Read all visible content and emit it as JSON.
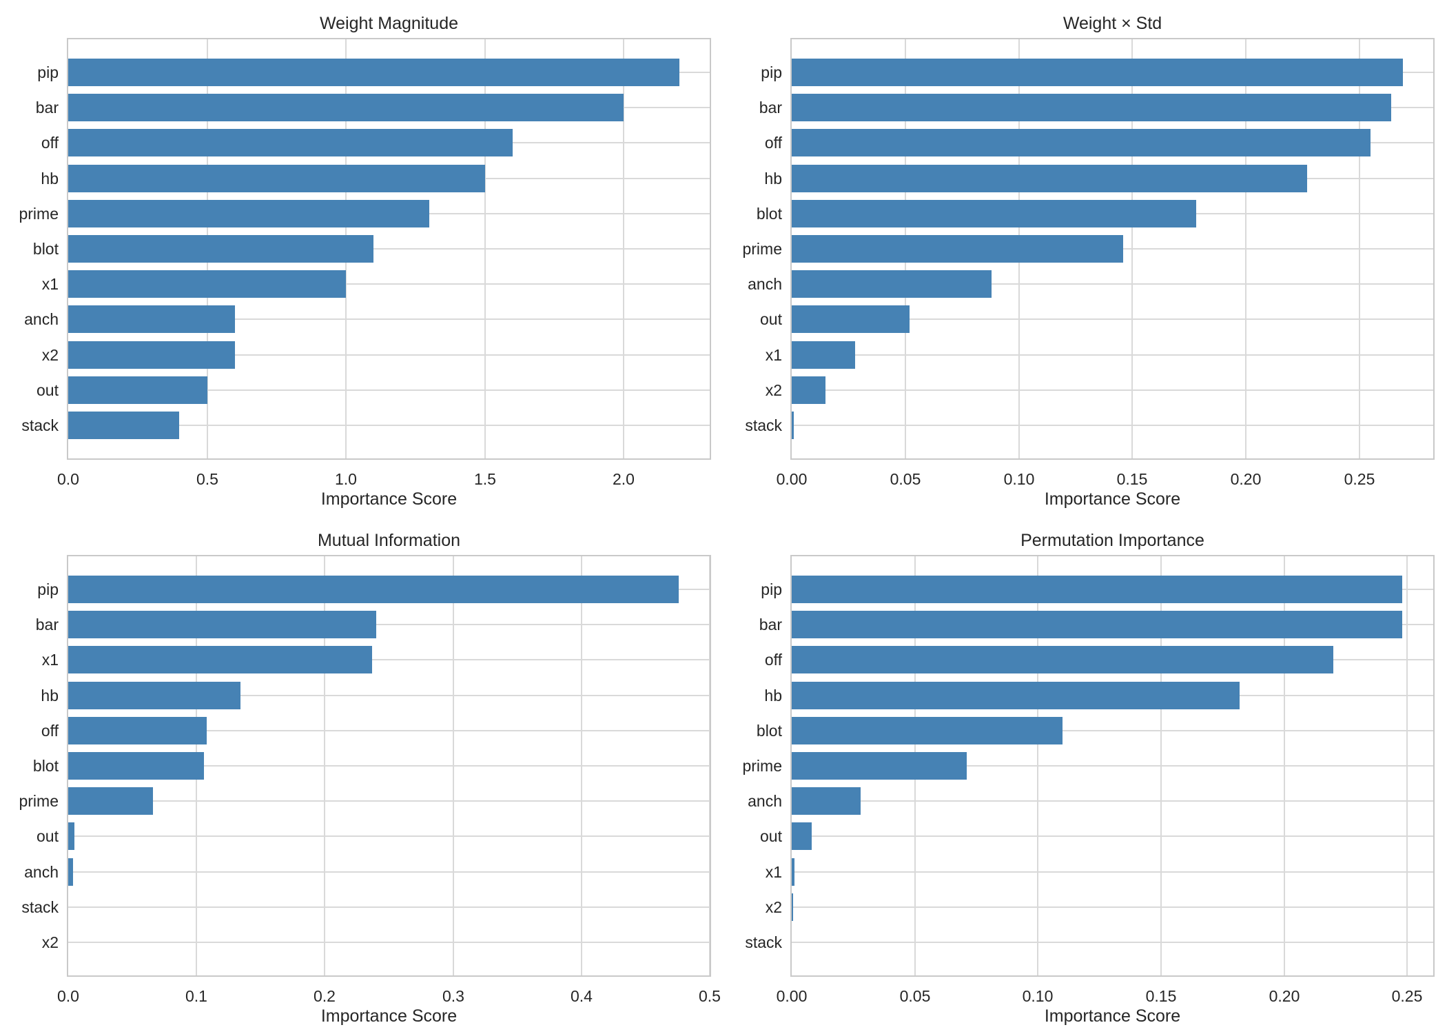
{
  "figure": {
    "bar_color": "#4682B4",
    "grid_color": "#d9d9d9",
    "spine_color": "#c9c9c9",
    "text_color": "#262626",
    "background": "#ffffff",
    "grid": true,
    "legend": "none"
  },
  "chart_data": [
    {
      "type": "bar",
      "orientation": "horizontal",
      "title": "Weight Magnitude",
      "xlabel": "Importance Score",
      "ylabel": "",
      "categories": [
        "pip",
        "bar",
        "off",
        "hb",
        "prime",
        "blot",
        "x1",
        "anch",
        "x2",
        "out",
        "stack"
      ],
      "values": [
        2.2,
        2.0,
        1.6,
        1.5,
        1.3,
        1.1,
        1.0,
        0.6,
        0.6,
        0.5,
        0.4
      ],
      "xlim": [
        0,
        2.31
      ],
      "xticks": [
        0,
        0.5,
        1.0,
        1.5,
        2.0
      ],
      "xtick_labels": [
        "0.0",
        "0.5",
        "1.0",
        "1.5",
        "2.0"
      ],
      "grid": true
    },
    {
      "type": "bar",
      "orientation": "horizontal",
      "title": "Weight × Std",
      "xlabel": "Importance Score",
      "ylabel": "",
      "categories": [
        "pip",
        "bar",
        "off",
        "hb",
        "blot",
        "prime",
        "anch",
        "out",
        "x1",
        "x2",
        "stack"
      ],
      "values": [
        0.269,
        0.264,
        0.255,
        0.227,
        0.178,
        0.146,
        0.088,
        0.052,
        0.028,
        0.015,
        0.001
      ],
      "xlim": [
        0,
        0.2825
      ],
      "xticks": [
        0,
        0.05,
        0.1,
        0.15,
        0.2,
        0.25
      ],
      "xtick_labels": [
        "0.00",
        "0.05",
        "0.10",
        "0.15",
        "0.20",
        "0.25"
      ],
      "grid": true
    },
    {
      "type": "bar",
      "orientation": "horizontal",
      "title": "Mutual Information",
      "xlabel": "Importance Score",
      "ylabel": "",
      "categories": [
        "pip",
        "bar",
        "x1",
        "hb",
        "off",
        "blot",
        "prime",
        "out",
        "anch",
        "stack",
        "x2"
      ],
      "values": [
        0.476,
        0.24,
        0.237,
        0.134,
        0.108,
        0.106,
        0.066,
        0.005,
        0.004,
        0.0,
        0.0
      ],
      "xlim": [
        0,
        0.5
      ],
      "xticks": [
        0,
        0.1,
        0.2,
        0.3,
        0.4,
        0.5
      ],
      "xtick_labels": [
        "0.0",
        "0.1",
        "0.2",
        "0.3",
        "0.4",
        "0.5"
      ],
      "grid": true
    },
    {
      "type": "bar",
      "orientation": "horizontal",
      "title": "Permutation Importance",
      "xlabel": "Importance Score",
      "ylabel": "",
      "categories": [
        "pip",
        "bar",
        "off",
        "hb",
        "blot",
        "prime",
        "anch",
        "out",
        "x1",
        "x2",
        "stack"
      ],
      "values": [
        0.248,
        0.248,
        0.22,
        0.182,
        0.11,
        0.071,
        0.028,
        0.008,
        0.001,
        0.0005,
        0.0
      ],
      "xlim": [
        0,
        0.2605
      ],
      "xticks": [
        0,
        0.05,
        0.1,
        0.15,
        0.2,
        0.25
      ],
      "xtick_labels": [
        "0.00",
        "0.05",
        "0.10",
        "0.15",
        "0.20",
        "0.25"
      ],
      "grid": true
    }
  ]
}
